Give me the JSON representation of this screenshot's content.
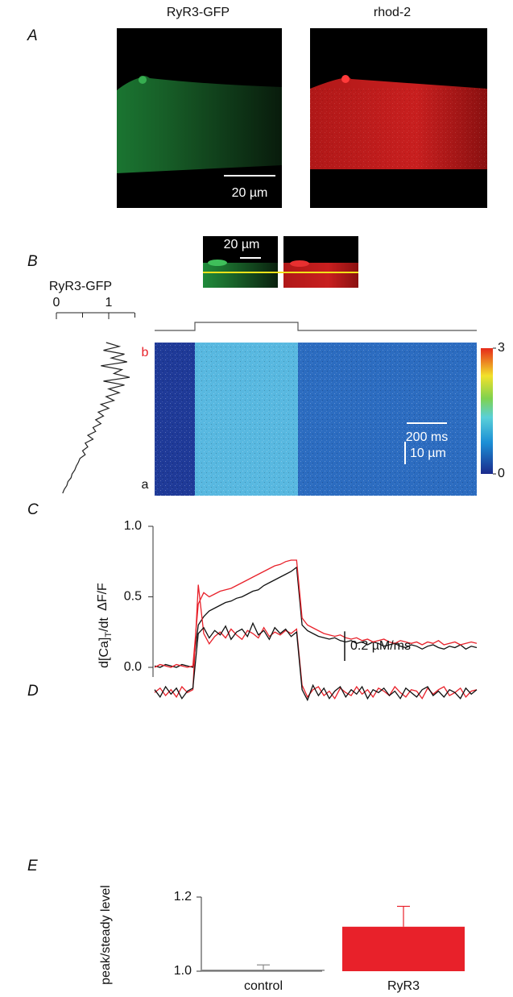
{
  "panel_labels": [
    "A",
    "B",
    "C",
    "D",
    "E"
  ],
  "panel_a": {
    "images": [
      "RyR3-GFP",
      "rhod-2"
    ],
    "scale_bar": "20 µm"
  },
  "panel_b": {
    "image_scale_bar": "20 µm",
    "profile": {
      "type": "line",
      "title": "RyR3-GFP",
      "xlim": [
        0,
        1.5
      ],
      "xticks": [
        0,
        1
      ],
      "minor_xticks": [
        0.5,
        1.5
      ],
      "color": "#222222",
      "values": [
        0.95,
        1.2,
        0.9,
        1.3,
        1.05,
        1.35,
        0.85,
        1.25,
        1.1,
        1.4,
        0.9,
        1.3,
        1.0,
        1.2,
        0.95,
        1.1,
        0.85,
        1.0,
        0.8,
        0.9,
        0.75,
        0.85,
        0.7,
        0.75,
        0.6,
        0.7,
        0.55,
        0.6,
        0.5,
        0.55,
        0.45,
        0.42,
        0.38,
        0.35,
        0.3,
        0.28,
        0.22,
        0.2,
        0.15,
        0.12
      ]
    },
    "linescan": {
      "top_label": "b",
      "bottom_label": "a",
      "time_bar": "200 ms",
      "space_bar": "10 µm",
      "colorbar": {
        "ylim": [
          0,
          3
        ],
        "yticks": [
          0,
          3
        ]
      }
    }
  },
  "chart_data": [
    {
      "type": "line",
      "ylabel": "ΔF/F",
      "ylim": [
        0,
        1
      ],
      "yticks": [
        {
          "value": 0,
          "label": "0.0"
        },
        {
          "value": 0.5,
          "label": "0.5"
        },
        {
          "value": 1,
          "label": "1.0"
        }
      ],
      "series": [
        {
          "color": "#111111",
          "values": [
            0.01,
            0.0,
            0.02,
            0.01,
            0.0,
            0.02,
            0.01,
            0.0,
            0.3,
            0.36,
            0.4,
            0.42,
            0.44,
            0.46,
            0.47,
            0.49,
            0.5,
            0.52,
            0.54,
            0.55,
            0.58,
            0.6,
            0.62,
            0.64,
            0.66,
            0.68,
            0.71,
            0.3,
            0.26,
            0.24,
            0.22,
            0.21,
            0.2,
            0.21,
            0.19,
            0.18,
            0.19,
            0.17,
            0.18,
            0.16,
            0.18,
            0.17,
            0.15,
            0.16,
            0.17,
            0.15,
            0.14,
            0.16,
            0.15,
            0.13,
            0.15,
            0.16,
            0.14,
            0.13,
            0.15,
            0.14,
            0.16,
            0.13,
            0.15,
            0.14
          ]
        },
        {
          "color": "#e8212a",
          "values": [
            0.0,
            0.02,
            0.01,
            0.0,
            0.02,
            0.01,
            0.0,
            0.01,
            0.45,
            0.53,
            0.5,
            0.52,
            0.54,
            0.55,
            0.56,
            0.58,
            0.6,
            0.62,
            0.64,
            0.66,
            0.68,
            0.7,
            0.72,
            0.73,
            0.75,
            0.76,
            0.76,
            0.35,
            0.3,
            0.28,
            0.26,
            0.24,
            0.23,
            0.22,
            0.23,
            0.21,
            0.2,
            0.21,
            0.19,
            0.2,
            0.18,
            0.19,
            0.2,
            0.18,
            0.17,
            0.19,
            0.18,
            0.17,
            0.18,
            0.16,
            0.18,
            0.17,
            0.19,
            0.16,
            0.17,
            0.18,
            0.16,
            0.17,
            0.18,
            0.17
          ]
        }
      ]
    },
    {
      "type": "line",
      "ylabel": {
        "main": "d[Ca]",
        "sub": "T",
        "tail": "/dt"
      },
      "ylim": [
        -0.14,
        0.76
      ],
      "scale_bar": {
        "value": 0.2,
        "label": "0.2 µM/ms"
      },
      "series": [
        {
          "color": "#e8212a",
          "values": [
            0.0,
            0.03,
            -0.02,
            0.02,
            -0.03,
            0.04,
            0.0,
            0.02,
            0.73,
            0.4,
            0.33,
            0.38,
            0.41,
            0.37,
            0.43,
            0.39,
            0.36,
            0.42,
            0.4,
            0.37,
            0.44,
            0.38,
            0.41,
            0.39,
            0.42,
            0.4,
            0.43,
            0.05,
            -0.03,
            0.02,
            0.04,
            -0.02,
            0.01,
            -0.04,
            0.03,
            0.0,
            -0.02,
            0.04,
            -0.01,
            0.02,
            -0.03,
            0.03,
            0.01,
            -0.02,
            0.04,
            0.0,
            -0.03,
            0.02,
            0.01,
            -0.04,
            0.03,
            -0.01,
            0.02,
            0.04,
            -0.02,
            0.0,
            0.03,
            -0.03,
            0.01,
            0.02
          ]
        },
        {
          "color": "#111111",
          "values": [
            0.02,
            -0.03,
            0.04,
            -0.01,
            0.03,
            -0.04,
            0.01,
            0.03,
            0.4,
            0.44,
            0.37,
            0.42,
            0.39,
            0.45,
            0.36,
            0.41,
            0.43,
            0.38,
            0.47,
            0.39,
            0.42,
            0.36,
            0.44,
            0.4,
            0.43,
            0.38,
            0.41,
            0.02,
            -0.05,
            0.05,
            -0.02,
            0.03,
            -0.04,
            0.01,
            0.04,
            -0.03,
            0.02,
            -0.01,
            0.04,
            -0.04,
            0.02,
            0.0,
            0.03,
            -0.02,
            0.01,
            -0.04,
            0.03,
            0.0,
            -0.03,
            0.02,
            0.04,
            -0.02,
            0.01,
            -0.03,
            0.02,
            0.0,
            -0.04,
            0.03,
            -0.01,
            0.02
          ]
        }
      ]
    },
    {
      "type": "bar",
      "ylabel": "peak/steady level",
      "categories": [
        "control",
        "RyR3"
      ],
      "values": [
        1.002,
        1.12
      ],
      "errors": [
        0.015,
        0.055
      ],
      "colors": [
        "#888888",
        "#e8212a"
      ],
      "ylim": [
        1.0,
        1.2
      ],
      "yticks": [
        {
          "value": 1.0,
          "label": "1.0"
        },
        {
          "value": 1.2,
          "label": "1.2"
        }
      ]
    }
  ]
}
